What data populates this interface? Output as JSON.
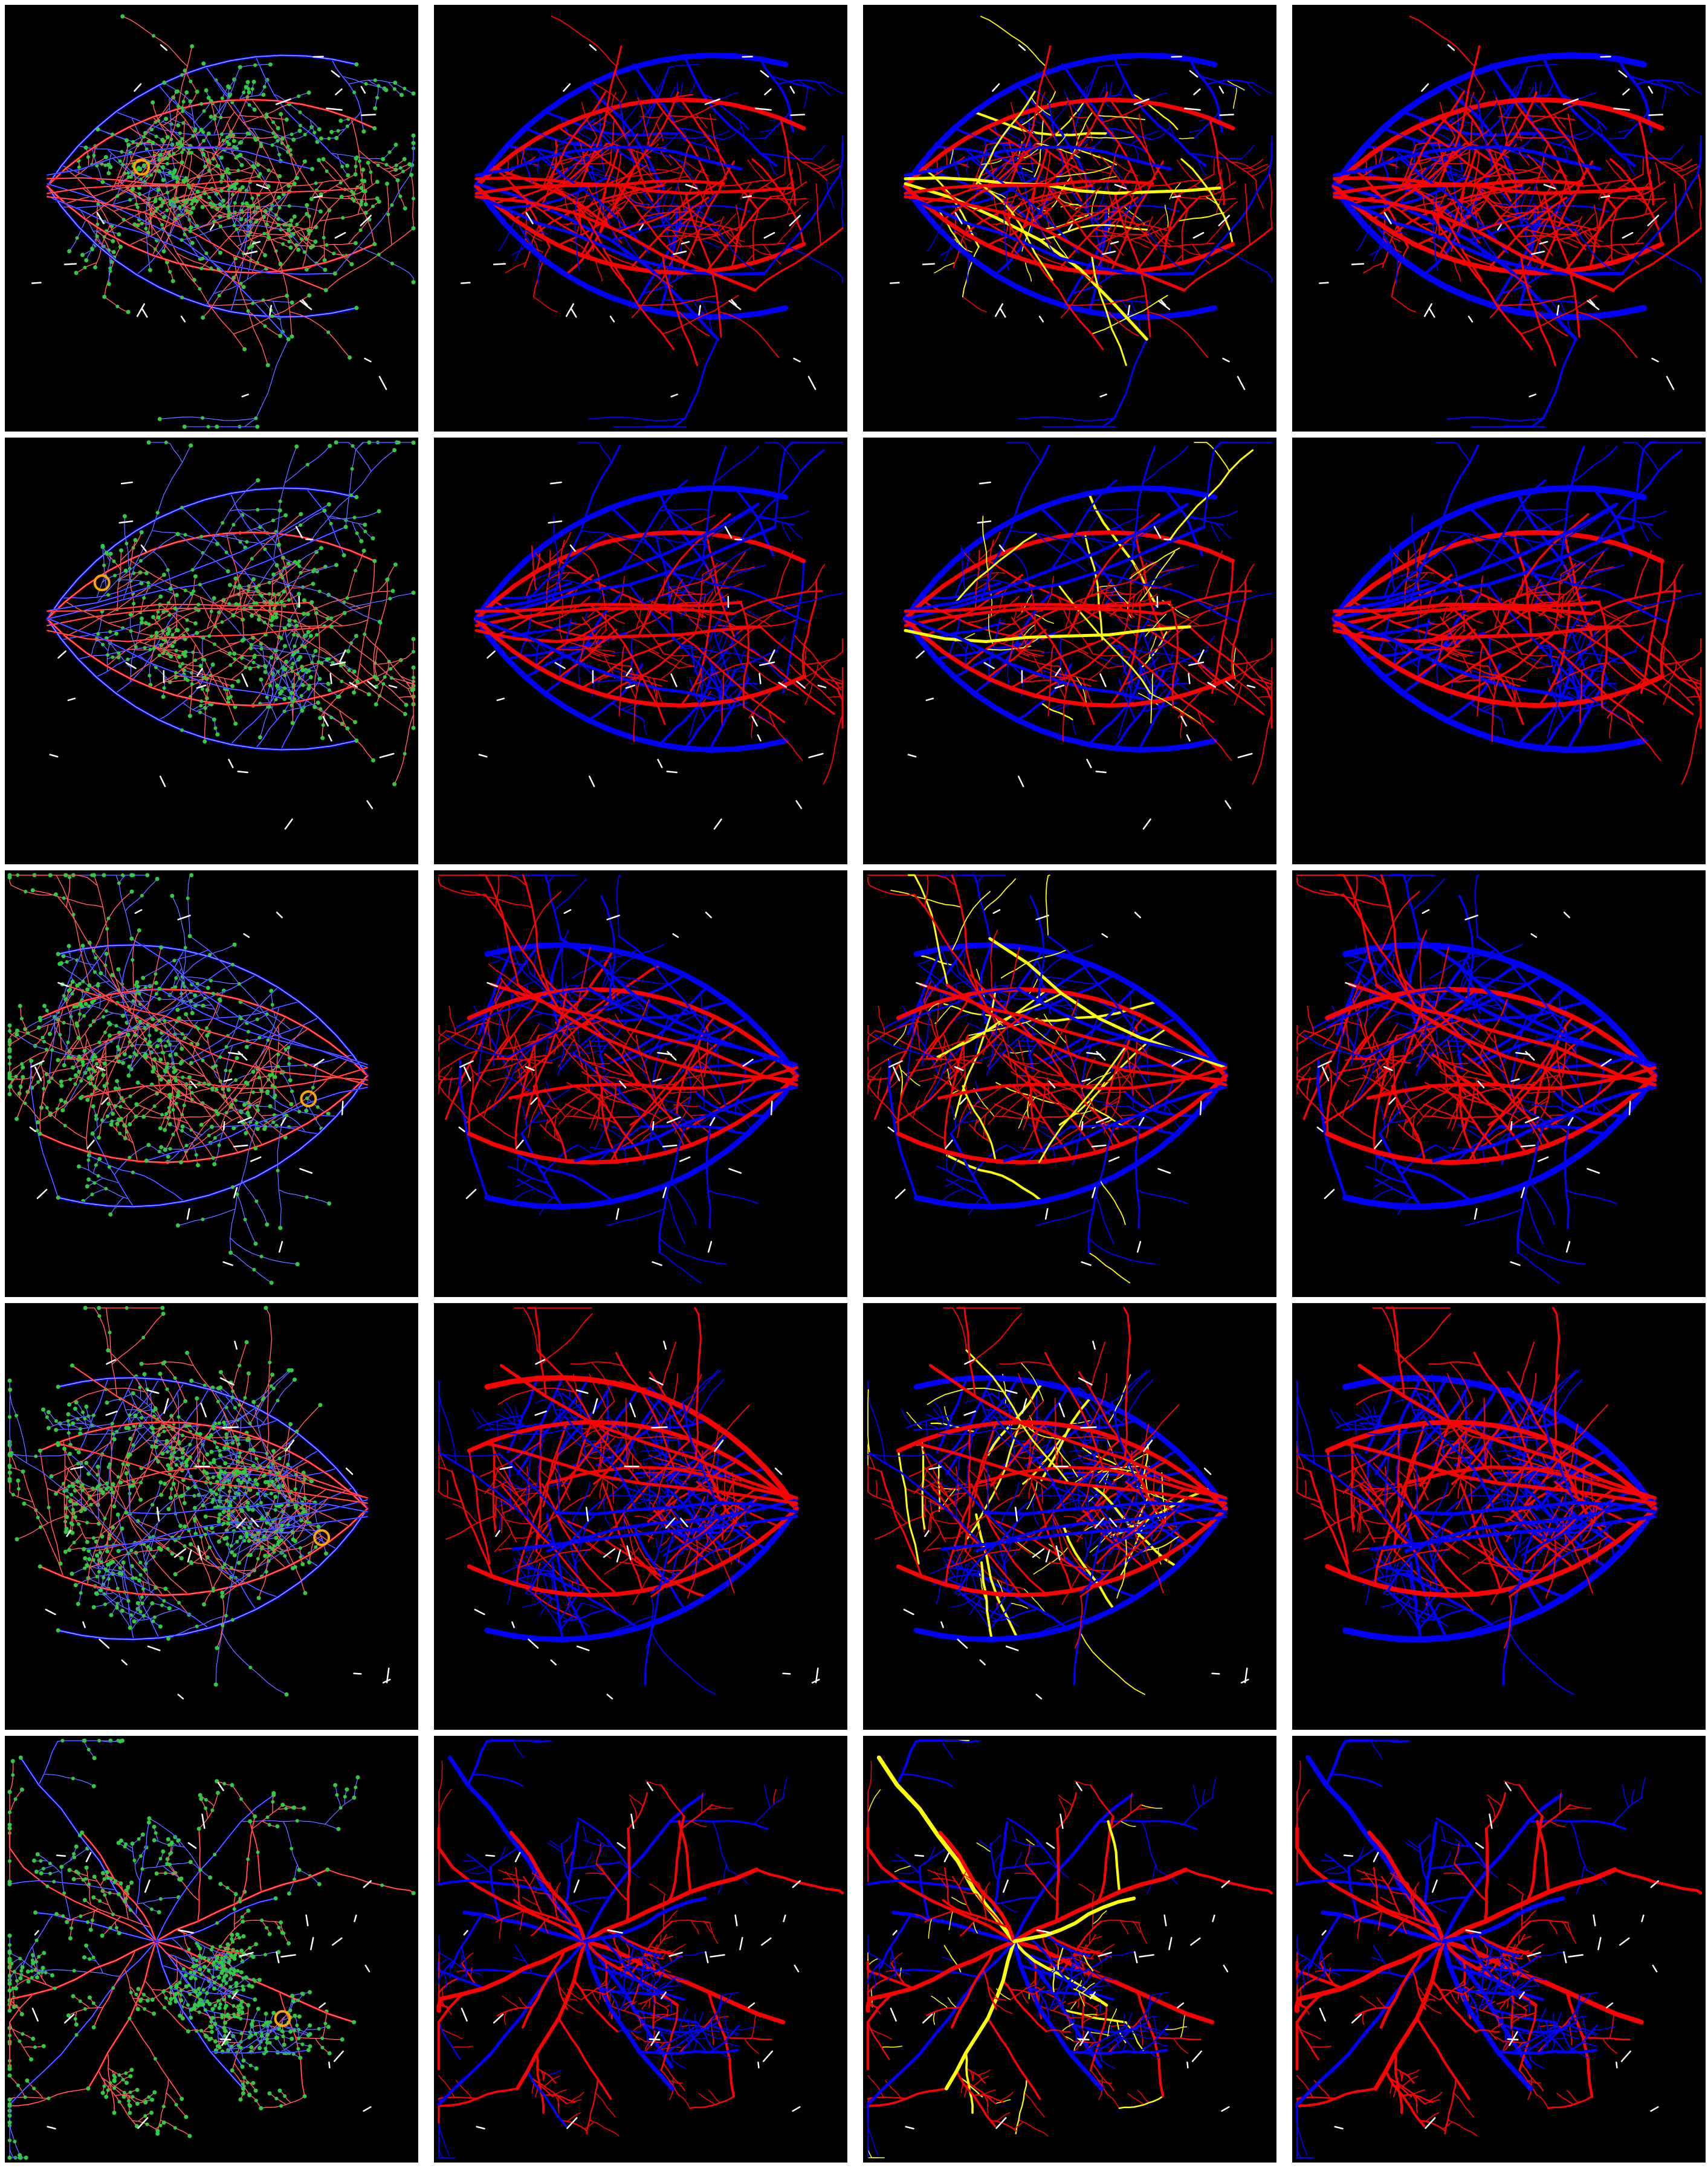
{
  "figure": {
    "rows": 5,
    "columns": 4,
    "background_color": "#ffffff",
    "panel_color": "#000000"
  },
  "legend_colors": {
    "artery": "#ff0000",
    "vein": "#0000ff",
    "uncertain": "#ffffff",
    "highlight": "#ffff00",
    "node": "#2ecc40",
    "crossing": "#ffa500"
  },
  "column_styles": [
    "graph-overlay",
    "prediction",
    "error-highlight",
    "ground-truth"
  ],
  "rows_data": [
    {
      "disc_side": "left",
      "variant": 1
    },
    {
      "disc_side": "left",
      "variant": 2
    },
    {
      "disc_side": "right",
      "variant": 3
    },
    {
      "disc_side": "right",
      "variant": 4
    },
    {
      "disc_side": "center",
      "variant": 5
    }
  ]
}
